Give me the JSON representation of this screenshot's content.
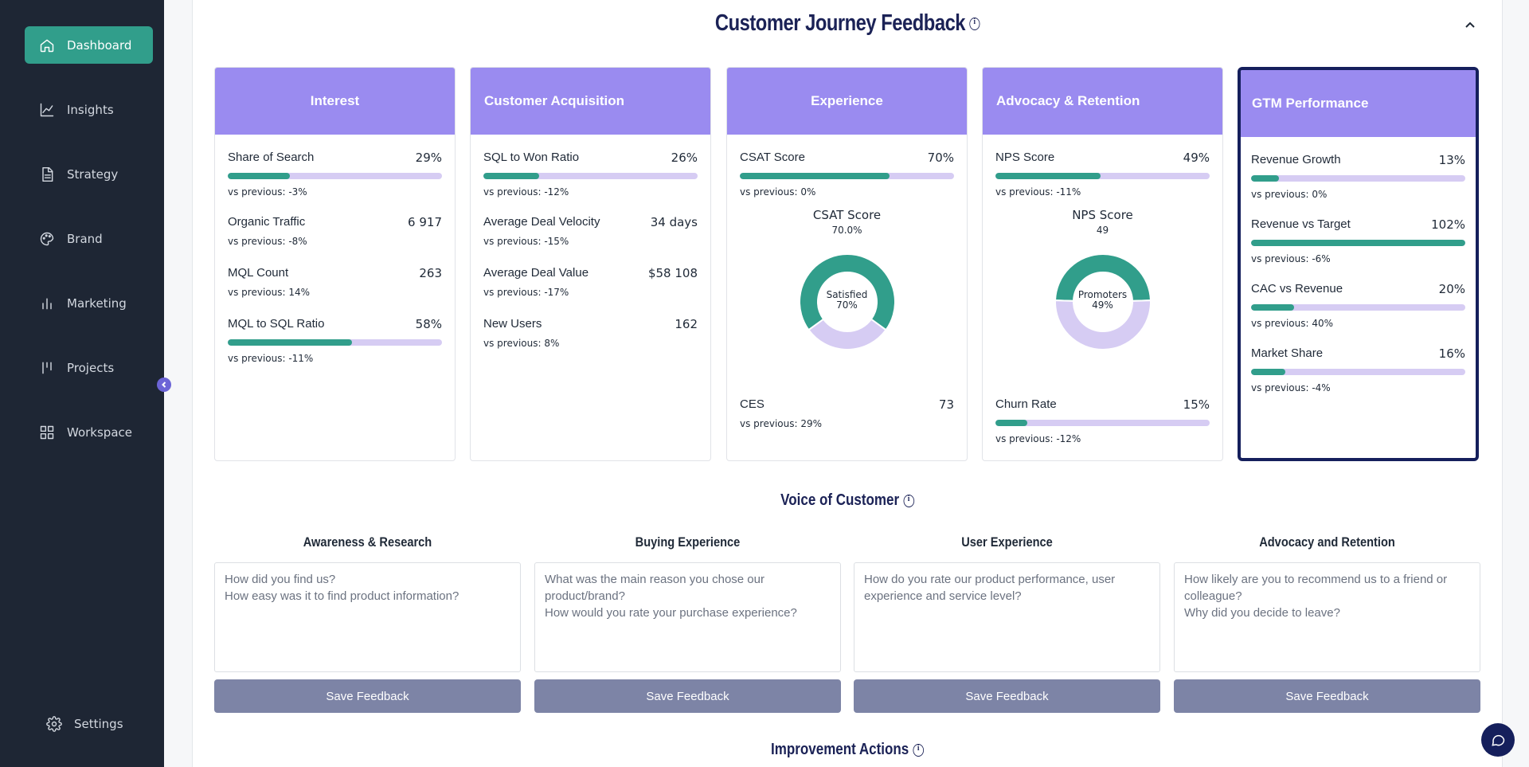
{
  "sidebar": {
    "items": [
      {
        "label": "Dashboard",
        "icon": "home-icon",
        "active": true
      },
      {
        "label": "Insights",
        "icon": "line-chart-icon"
      },
      {
        "label": "Strategy",
        "icon": "document-icon"
      },
      {
        "label": "Brand",
        "icon": "palette-icon"
      },
      {
        "label": "Marketing",
        "icon": "bar-chart-icon"
      },
      {
        "label": "Projects",
        "icon": "kanban-icon"
      },
      {
        "label": "Workspace",
        "icon": "grid-icon"
      }
    ],
    "settings_label": "Settings"
  },
  "header": {
    "title": "Customer Journey Feedback"
  },
  "cards": [
    {
      "title": "Interest",
      "metrics": [
        {
          "label": "Share of Search",
          "value": "29%",
          "bar": 29,
          "vs": "vs previous: -3%"
        },
        {
          "label": "Organic Traffic",
          "value": "6 917",
          "vs": "vs previous: -8%"
        },
        {
          "label": "MQL Count",
          "value": "263",
          "vs": "vs previous: 14%"
        },
        {
          "label": "MQL to SQL Ratio",
          "value": "58%",
          "bar": 58,
          "vs": "vs previous: -11%"
        }
      ]
    },
    {
      "title": "Customer Acquisition",
      "metrics": [
        {
          "label": "SQL to Won Ratio",
          "value": "26%",
          "bar": 26,
          "vs": "vs previous: -12%"
        },
        {
          "label": "Average Deal Velocity",
          "value": "34 days",
          "vs": "vs previous: -15%"
        },
        {
          "label": "Average Deal Value",
          "value": "$58 108",
          "vs": "vs previous: -17%"
        },
        {
          "label": "New Users",
          "value": "162",
          "vs": "vs previous: 8%"
        }
      ]
    },
    {
      "title": "Experience",
      "metrics": [
        {
          "label": "CSAT Score",
          "value": "70%",
          "bar": 70,
          "vs": "vs previous: 0%"
        },
        {
          "label": "CES",
          "value": "73",
          "vs": "vs previous: 29%"
        }
      ],
      "donut": {
        "title": "CSAT Score",
        "sub": "70.0%",
        "center_label": "Satisfied",
        "center_value": "70%",
        "percent": 70
      }
    },
    {
      "title": "Advocacy & Retention",
      "metrics": [
        {
          "label": "NPS Score",
          "value": "49%",
          "bar": 49,
          "vs": "vs previous: -11%"
        },
        {
          "label": "Churn Rate",
          "value": "15%",
          "bar": 15,
          "vs": "vs previous: -12%"
        }
      ],
      "donut": {
        "title": "NPS Score",
        "sub": "49",
        "center_label": "Promoters",
        "center_value": "49%",
        "percent": 49
      }
    },
    {
      "title": "GTM Performance",
      "metrics": [
        {
          "label": "Revenue Growth",
          "value": "13%",
          "bar": 13,
          "vs": "vs previous: 0%"
        },
        {
          "label": "Revenue vs Target",
          "value": "102%",
          "bar": 100,
          "vs": "vs previous: -6%"
        },
        {
          "label": "CAC vs Revenue",
          "value": "20%",
          "bar": 20,
          "vs": "vs previous: 40%"
        },
        {
          "label": "Market Share",
          "value": "16%",
          "bar": 16,
          "vs": "vs previous: -4%"
        }
      ]
    }
  ],
  "voc": {
    "title": "Voice of Customer",
    "columns": [
      {
        "title": "Awareness & Research",
        "placeholder": "How did you find us?\nHow easy was it to find product information?",
        "button": "Save Feedback"
      },
      {
        "title": "Buying Experience",
        "placeholder": "What was the main reason you chose our product/brand?\nHow would you rate your purchase experience?",
        "button": "Save Feedback"
      },
      {
        "title": "User Experience",
        "placeholder": "How do you rate our product performance, user experience and service level?",
        "button": "Save Feedback"
      },
      {
        "title": "Advocacy and Retention",
        "placeholder": "How likely are you to recommend us to a friend or colleague?\nWhy did you decide to leave?",
        "button": "Save Feedback"
      }
    ]
  },
  "improvement": {
    "title": "Improvement Actions"
  },
  "colors": {
    "accent": "#319e8b",
    "card_header": "#9a8bf0",
    "bar_track": "#d6ccf3",
    "sidebar": "#1e2634",
    "title": "#1b2256",
    "button": "#7d84a6"
  }
}
